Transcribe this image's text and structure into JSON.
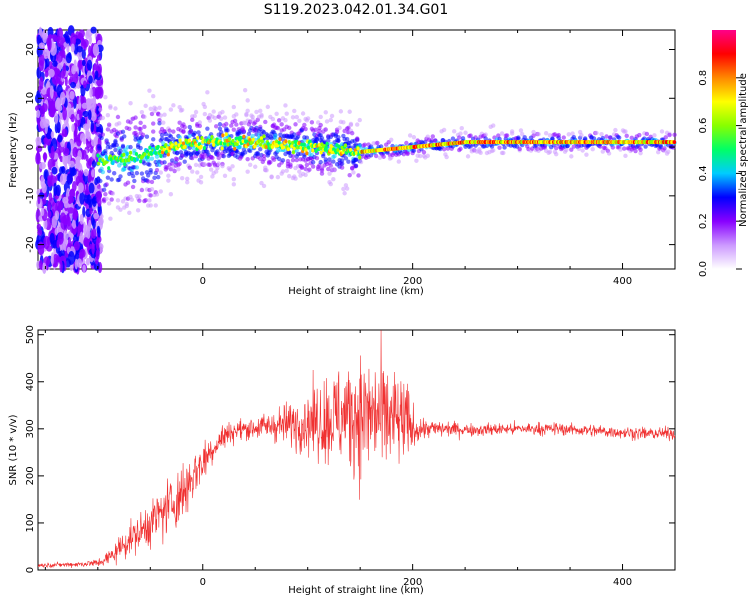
{
  "title": "S119.2023.042.01.34.G01",
  "chart_data": [
    {
      "type": "heatmap",
      "xlabel": "Height of straight line (km)",
      "ylabel": "Frequency (Hz)",
      "xlim": [
        -157,
        450
      ],
      "ylim": [
        -25,
        24
      ],
      "x_ticks": [
        0,
        200,
        400
      ],
      "y_ticks": [
        -20,
        -10,
        0,
        10,
        20
      ],
      "colorbar": {
        "label": "Normalized spectral amplitude",
        "range": [
          0,
          1
        ],
        "ticks": [
          "0.0",
          "0.2",
          "0.4",
          "0.6",
          "0.8"
        ],
        "colors": [
          "#ffffff",
          "#cc99ff",
          "#8800ff",
          "#0000ff",
          "#00ccff",
          "#00ff66",
          "#88ff00",
          "#ffff00",
          "#ff8800",
          "#ff0000",
          "#ff0088"
        ]
      },
      "ridge": {
        "x": [
          -100,
          -60,
          -30,
          0,
          50,
          100,
          150,
          200,
          250,
          300,
          350,
          400,
          450
        ],
        "y": [
          -3,
          -2,
          0,
          1,
          1,
          0,
          -1,
          0,
          1,
          1,
          1,
          1,
          1
        ]
      }
    },
    {
      "type": "line",
      "xlabel": "Height of straight line (km)",
      "ylabel": "SNR (10 * v/v)",
      "xlim": [
        -157,
        450
      ],
      "ylim": [
        0,
        510
      ],
      "x_ticks": [
        0,
        200,
        400
      ],
      "y_ticks": [
        0,
        100,
        200,
        300,
        400,
        500
      ],
      "color": "#f03030",
      "series": [
        {
          "x": [
            -157,
            -120,
            -100,
            -90,
            -80,
            -70,
            -60,
            -50,
            -40,
            -30,
            -20,
            -10,
            0,
            10,
            20,
            30,
            40,
            60,
            80,
            100,
            120,
            140,
            160,
            180,
            195,
            200,
            210,
            230,
            260,
            300,
            340,
            380,
            420,
            450
          ],
          "y": [
            10,
            12,
            15,
            25,
            45,
            65,
            80,
            100,
            120,
            140,
            160,
            200,
            230,
            260,
            285,
            295,
            300,
            305,
            310,
            315,
            320,
            330,
            330,
            320,
            310,
            300,
            300,
            300,
            298,
            300,
            300,
            295,
            290,
            290
          ],
          "spread": [
            4,
            5,
            8,
            15,
            25,
            30,
            35,
            45,
            50,
            55,
            60,
            55,
            40,
            30,
            25,
            20,
            20,
            25,
            40,
            60,
            90,
            110,
            120,
            100,
            80,
            40,
            20,
            15,
            12,
            12,
            12,
            12,
            12,
            12
          ]
        }
      ]
    }
  ]
}
